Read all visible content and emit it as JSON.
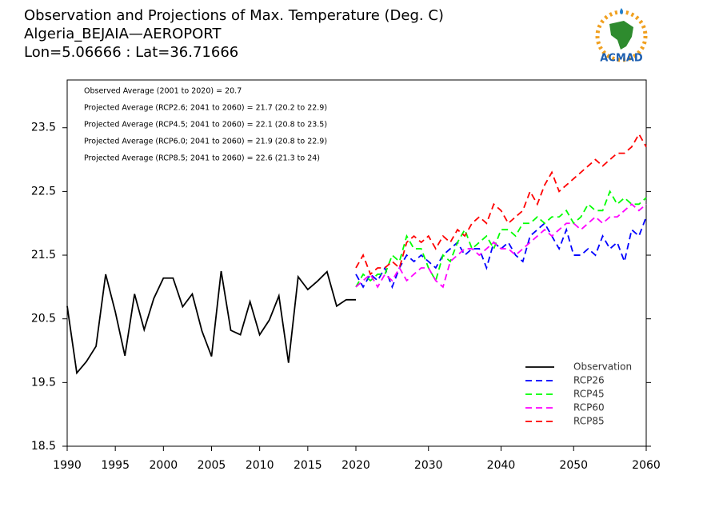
{
  "chart_data": {
    "type": "line",
    "title": [
      "Observation and Projections of Max. Temperature (Deg. C)",
      "Algeria_BEJAIA—AEROPORT",
      "Lon=5.06666 : Lat=36.71666"
    ],
    "logo": "ACMAD",
    "annotations": [
      "Observed Average (2001 to 2020) = 20.7",
      "Projected Average (RCP2.6; 2041 to 2060) = 21.7 (20.2 to 22.9)",
      "Projected Average (RCP4.5; 2041 to 2060) = 22.1 (20.8 to 23.5)",
      "Projected Average (RCP6.0; 2041 to 2060) = 21.9 (20.8 to 22.9)",
      "Projected Average (RCP8.5; 2041 to 2060) = 22.6 (21.3 to 24)"
    ],
    "xlim": [
      1990,
      2060
    ],
    "xticks": [
      1990,
      1995,
      2000,
      2005,
      2010,
      2015,
      2020,
      2030,
      2040,
      2050,
      2060
    ],
    "ylim": [
      18.5,
      24.25
    ],
    "yticks": [
      18.5,
      19.5,
      20.5,
      21.5,
      22.5,
      23.5
    ],
    "legend": "lower right",
    "series": [
      {
        "name": "Observation",
        "color": "#000000",
        "style": "solid",
        "x": [
          1990,
          1991,
          1992,
          1993,
          1994,
          1995,
          1996,
          1997,
          1998,
          1999,
          2000,
          2001,
          2002,
          2003,
          2004,
          2005,
          2006,
          2007,
          2008,
          2009,
          2010,
          2011,
          2012,
          2013,
          2014,
          2015,
          2016,
          2017,
          2018,
          2019,
          2020
        ],
        "values": [
          20.7,
          19.65,
          19.83,
          20.07,
          21.2,
          20.61,
          19.92,
          20.89,
          20.33,
          20.82,
          21.14,
          21.14,
          20.69,
          20.89,
          20.31,
          19.91,
          21.25,
          20.32,
          20.25,
          20.77,
          20.25,
          20.48,
          20.86,
          19.81,
          21.16,
          20.96,
          21.09,
          21.24,
          20.7,
          20.8,
          20.8
        ]
      },
      {
        "name": "RCP26",
        "color": "#0000ff",
        "style": "dashed",
        "x": [
          2020,
          2021,
          2022,
          2023,
          2024,
          2025,
          2026,
          2027,
          2028,
          2029,
          2030,
          2031,
          2032,
          2033,
          2034,
          2035,
          2036,
          2037,
          2038,
          2039,
          2040,
          2041,
          2042,
          2043,
          2044,
          2045,
          2046,
          2047,
          2048,
          2049,
          2050,
          2051,
          2052,
          2053,
          2054,
          2055,
          2056,
          2057,
          2058,
          2059,
          2060
        ],
        "values": [
          21.2,
          21.0,
          21.2,
          21.1,
          21.3,
          21.0,
          21.3,
          21.5,
          21.4,
          21.5,
          21.4,
          21.3,
          21.5,
          21.6,
          21.7,
          21.5,
          21.6,
          21.6,
          21.3,
          21.7,
          21.6,
          21.7,
          21.5,
          21.4,
          21.8,
          21.9,
          22.0,
          21.8,
          21.6,
          21.9,
          21.5,
          21.5,
          21.6,
          21.5,
          21.8,
          21.6,
          21.7,
          21.4,
          21.9,
          21.8,
          22.1
        ]
      },
      {
        "name": "RCP45",
        "color": "#00ff00",
        "style": "dashed",
        "x": [
          2020,
          2021,
          2022,
          2023,
          2024,
          2025,
          2026,
          2027,
          2028,
          2029,
          2030,
          2031,
          2032,
          2033,
          2034,
          2035,
          2036,
          2037,
          2038,
          2039,
          2040,
          2041,
          2042,
          2043,
          2044,
          2045,
          2046,
          2047,
          2048,
          2049,
          2050,
          2051,
          2052,
          2053,
          2054,
          2055,
          2056,
          2057,
          2058,
          2059,
          2060
        ],
        "values": [
          21.0,
          21.2,
          21.1,
          21.2,
          21.2,
          21.5,
          21.4,
          21.8,
          21.6,
          21.6,
          21.3,
          21.1,
          21.5,
          21.4,
          21.7,
          21.9,
          21.6,
          21.7,
          21.8,
          21.6,
          21.9,
          21.9,
          21.8,
          22.0,
          22.0,
          22.1,
          22.0,
          22.1,
          22.1,
          22.2,
          22.0,
          22.1,
          22.3,
          22.2,
          22.2,
          22.5,
          22.3,
          22.4,
          22.3,
          22.3,
          22.4
        ]
      },
      {
        "name": "RCP60",
        "color": "#ff00ff",
        "style": "dashed",
        "x": [
          2020,
          2021,
          2022,
          2023,
          2024,
          2025,
          2026,
          2027,
          2028,
          2029,
          2030,
          2031,
          2032,
          2033,
          2034,
          2035,
          2036,
          2037,
          2038,
          2039,
          2040,
          2041,
          2042,
          2043,
          2044,
          2045,
          2046,
          2047,
          2048,
          2049,
          2050,
          2051,
          2052,
          2053,
          2054,
          2055,
          2056,
          2057,
          2058,
          2059,
          2060
        ],
        "values": [
          21.0,
          21.1,
          21.2,
          21.0,
          21.2,
          21.1,
          21.3,
          21.1,
          21.2,
          21.3,
          21.3,
          21.1,
          21.0,
          21.4,
          21.5,
          21.6,
          21.6,
          21.5,
          21.6,
          21.7,
          21.6,
          21.6,
          21.5,
          21.6,
          21.7,
          21.8,
          21.9,
          21.8,
          21.9,
          22.0,
          22.0,
          21.9,
          22.0,
          22.1,
          22.0,
          22.1,
          22.1,
          22.2,
          22.3,
          22.2,
          22.3
        ]
      },
      {
        "name": "RCP85",
        "color": "#ff0000",
        "style": "dashed",
        "x": [
          2020,
          2021,
          2022,
          2023,
          2024,
          2025,
          2026,
          2027,
          2028,
          2029,
          2030,
          2031,
          2032,
          2033,
          2034,
          2035,
          2036,
          2037,
          2038,
          2039,
          2040,
          2041,
          2042,
          2043,
          2044,
          2045,
          2046,
          2047,
          2048,
          2049,
          2050,
          2051,
          2052,
          2053,
          2054,
          2055,
          2056,
          2057,
          2058,
          2059,
          2060
        ],
        "values": [
          21.3,
          21.5,
          21.2,
          21.3,
          21.3,
          21.4,
          21.3,
          21.7,
          21.8,
          21.7,
          21.8,
          21.6,
          21.8,
          21.7,
          21.9,
          21.8,
          22.0,
          22.1,
          22.0,
          22.3,
          22.2,
          22.0,
          22.1,
          22.2,
          22.5,
          22.3,
          22.6,
          22.8,
          22.5,
          22.6,
          22.7,
          22.8,
          22.9,
          23.0,
          22.9,
          23.0,
          23.1,
          23.1,
          23.2,
          23.4,
          23.2
        ]
      }
    ]
  }
}
